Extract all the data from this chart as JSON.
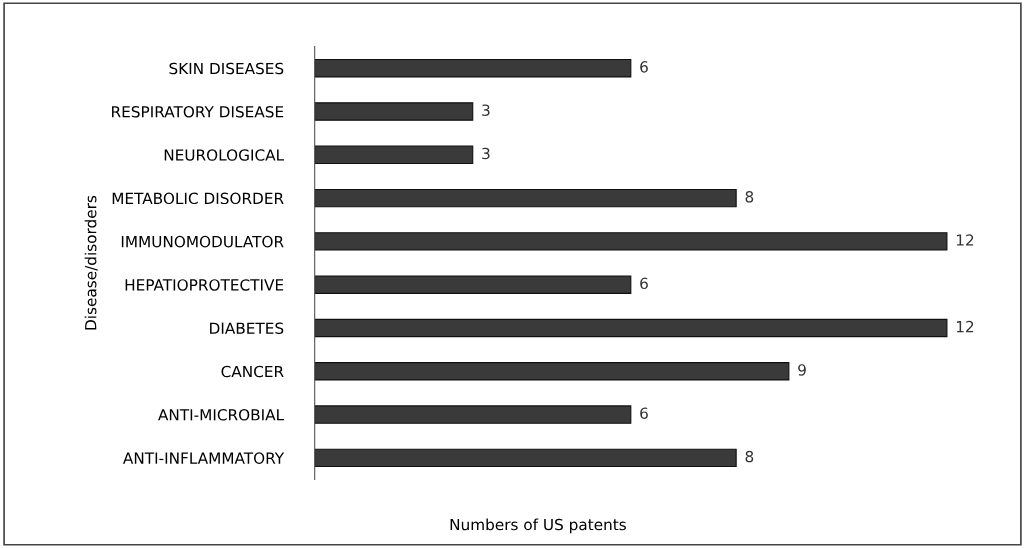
{
  "chart_data": {
    "type": "bar",
    "orientation": "horizontal",
    "xlabel": "Numbers of US patents",
    "ylabel": "Disease/disorders",
    "categories": [
      "SKIN DISEASES",
      "RESPIRATORY DISEASE",
      "NEUROLOGICAL",
      "METABOLIC DISORDER",
      "IMMUNOMODULATOR",
      "HEPATIOPROTECTIVE",
      "DIABETES",
      "CANCER",
      "ANTI-MICROBIAL",
      "ANTI-INFLAMMATORY"
    ],
    "values": [
      6,
      3,
      3,
      8,
      12,
      6,
      12,
      9,
      6,
      8
    ],
    "color": "#3a3a3a",
    "data_labels": true,
    "grid": false,
    "legend": false,
    "tick_labels": "y"
  }
}
